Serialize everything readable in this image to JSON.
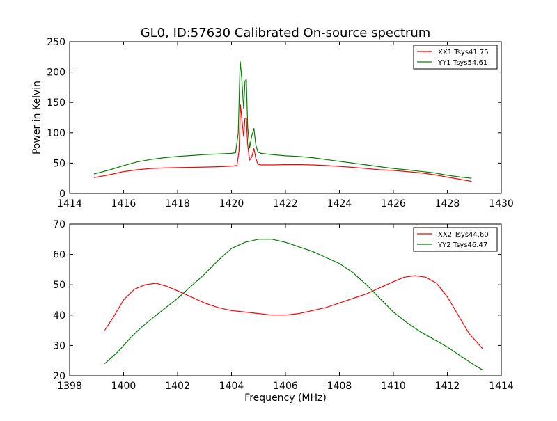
{
  "figure": {
    "title": "GL0, ID:57630 Calibrated On-source spectrum",
    "colors": {
      "red": "#ff0000",
      "green": "#008000",
      "frame": "#000000"
    }
  },
  "chart_data": [
    {
      "type": "line",
      "title": "GL0, ID:57630 Calibrated On-source spectrum",
      "xlabel": "",
      "ylabel": "Power in Kelvin",
      "xlim": [
        1414,
        1430
      ],
      "ylim": [
        0,
        250
      ],
      "xticks": [
        1414,
        1416,
        1418,
        1420,
        1422,
        1424,
        1426,
        1428,
        1430
      ],
      "yticks": [
        0,
        50,
        100,
        150,
        200,
        250
      ],
      "legend": "top-right",
      "series": [
        {
          "name": "XX1 Tsys41.75",
          "color": "#ff0000",
          "x": [
            1414.9,
            1415.5,
            1416.0,
            1416.5,
            1417.0,
            1417.5,
            1418.0,
            1418.5,
            1419.0,
            1419.5,
            1420.0,
            1420.2,
            1420.28,
            1420.33,
            1420.38,
            1420.45,
            1420.5,
            1420.55,
            1420.6,
            1420.67,
            1420.75,
            1420.83,
            1420.9,
            1420.98,
            1421.1,
            1421.5,
            1422.0,
            1422.5,
            1423.0,
            1423.5,
            1424.0,
            1424.5,
            1425.0,
            1425.5,
            1426.0,
            1426.5,
            1427.0,
            1427.5,
            1428.0,
            1428.5,
            1428.9
          ],
          "y": [
            26,
            31,
            36,
            39,
            41,
            42,
            42.5,
            43,
            43.5,
            44,
            45,
            46,
            70,
            146,
            125,
            94,
            124,
            124,
            80,
            55,
            60,
            74,
            58,
            48,
            47,
            47,
            47.5,
            47.5,
            47,
            46,
            44.5,
            43,
            41,
            39,
            38,
            36,
            34,
            31,
            27,
            23,
            20
          ]
        },
        {
          "name": "YY1 Tsys54.61",
          "color": "#008000",
          "x": [
            1414.9,
            1415.5,
            1416.0,
            1416.5,
            1417.0,
            1417.5,
            1418.0,
            1418.5,
            1419.0,
            1419.5,
            1420.0,
            1420.15,
            1420.25,
            1420.32,
            1420.38,
            1420.45,
            1420.5,
            1420.55,
            1420.6,
            1420.67,
            1420.75,
            1420.83,
            1420.9,
            1420.98,
            1421.1,
            1421.5,
            1422.0,
            1422.5,
            1423.0,
            1423.5,
            1424.0,
            1424.5,
            1425.0,
            1425.5,
            1426.0,
            1426.5,
            1427.0,
            1427.5,
            1428.0,
            1428.5,
            1428.9
          ],
          "y": [
            32,
            39,
            46,
            52,
            56,
            59,
            61,
            62.5,
            64,
            65,
            66,
            67,
            100,
            218,
            190,
            140,
            185,
            188,
            110,
            75,
            95,
            107,
            80,
            68,
            66,
            64,
            62,
            61,
            59,
            56,
            53,
            50,
            47,
            44,
            41,
            39,
            36.5,
            34,
            30,
            27,
            25
          ]
        }
      ]
    },
    {
      "type": "line",
      "title": "",
      "xlabel": "Frequency (MHz)",
      "ylabel": "",
      "xlim": [
        1398,
        1414
      ],
      "ylim": [
        20,
        70
      ],
      "xticks": [
        1398,
        1400,
        1402,
        1404,
        1406,
        1408,
        1410,
        1412,
        1414
      ],
      "yticks": [
        20,
        30,
        40,
        50,
        60,
        70
      ],
      "legend": "top-right",
      "series": [
        {
          "name": "XX2 Tsys44.60",
          "color": "#ff0000",
          "x": [
            1399.3,
            1399.6,
            1400.0,
            1400.4,
            1400.8,
            1401.2,
            1401.6,
            1402.0,
            1402.5,
            1403.0,
            1403.5,
            1404.0,
            1404.5,
            1405.0,
            1405.5,
            1406.0,
            1406.5,
            1407.0,
            1407.5,
            1408.0,
            1408.5,
            1409.0,
            1409.5,
            1410.0,
            1410.4,
            1410.8,
            1411.2,
            1411.6,
            1412.0,
            1412.4,
            1412.8,
            1413.3
          ],
          "y": [
            35,
            39,
            45,
            48.5,
            50,
            50.5,
            49.5,
            48,
            46,
            44,
            42.5,
            41.5,
            41,
            40.5,
            40,
            40,
            40.5,
            41.5,
            42.5,
            44,
            45.5,
            47,
            49,
            51,
            52.5,
            53,
            52.5,
            50.5,
            46,
            40,
            34,
            29
          ]
        },
        {
          "name": "YY2 Tsys46.47",
          "color": "#008000",
          "x": [
            1399.3,
            1399.8,
            1400.2,
            1400.6,
            1401.0,
            1401.5,
            1402.0,
            1402.5,
            1403.0,
            1403.5,
            1404.0,
            1404.5,
            1405.0,
            1405.5,
            1406.0,
            1406.5,
            1407.0,
            1407.5,
            1408.0,
            1408.5,
            1409.0,
            1409.5,
            1410.0,
            1410.5,
            1411.0,
            1411.5,
            1412.0,
            1412.5,
            1413.0,
            1413.3
          ],
          "y": [
            24,
            28,
            32,
            35.5,
            38.5,
            42,
            45.5,
            49.5,
            53.5,
            58,
            62,
            64,
            65,
            65,
            64,
            62.5,
            61,
            59,
            57,
            54,
            50,
            45.5,
            41,
            37.5,
            34.5,
            32,
            29.5,
            26.5,
            23.5,
            22
          ]
        }
      ]
    }
  ]
}
